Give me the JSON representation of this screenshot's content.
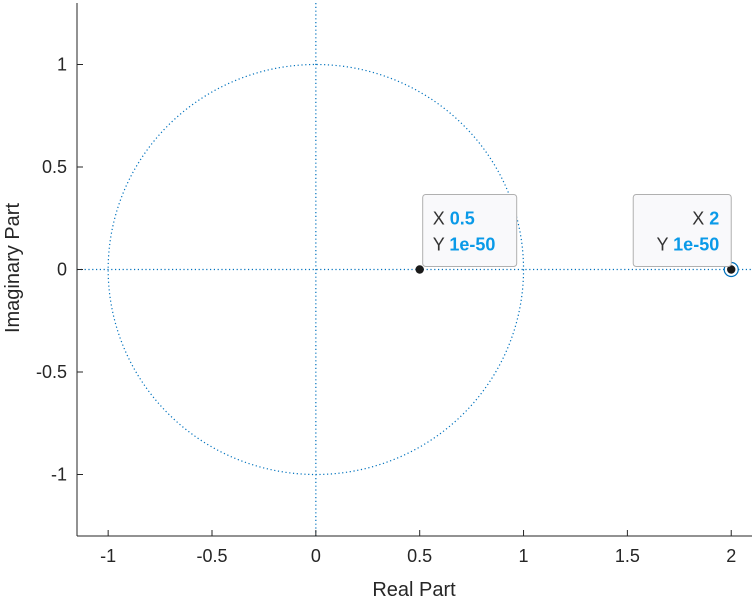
{
  "chart_data": {
    "type": "scatter",
    "xlabel": "Real Part",
    "ylabel": "Imaginary Part",
    "xlim": [
      -1.15,
      2.1
    ],
    "ylim": [
      -1.3,
      1.3
    ],
    "xticks": [
      -1,
      -0.5,
      0,
      0.5,
      1,
      1.5,
      2
    ],
    "xtick_labels": [
      "-1",
      "-0.5",
      "0",
      "0.5",
      "1",
      "1.5",
      "2"
    ],
    "yticks": [
      -1,
      -0.5,
      0,
      0.5,
      1
    ],
    "ytick_labels": [
      "-1",
      "-0.5",
      "0",
      "0.5",
      "1"
    ],
    "grid": false,
    "unit_circle": true,
    "reference_lines": {
      "x": 0,
      "y": 0
    },
    "series": [
      {
        "marker": "filled-dot",
        "x": [
          0.5
        ],
        "y": [
          1e-50
        ]
      },
      {
        "marker": "ringed-dot",
        "x": [
          2
        ],
        "y": [
          1e-50
        ]
      }
    ],
    "datatips": [
      {
        "x_label": "X",
        "x_value": "0.5",
        "y_label": "Y",
        "y_value": "1e-50",
        "anchor_x": 0.5,
        "anchor_y": 0,
        "side": "above-right"
      },
      {
        "x_label": "X",
        "x_value": "2",
        "y_label": "Y",
        "y_value": "1e-50",
        "anchor_x": 2,
        "anchor_y": 0,
        "side": "above-left"
      }
    ],
    "colors": {
      "circle": "#0072BD",
      "axes": "#262626",
      "marker": "#1a1a1a",
      "tip_value": "#0a9ae8",
      "tip_border": "#b0b0b0"
    }
  }
}
